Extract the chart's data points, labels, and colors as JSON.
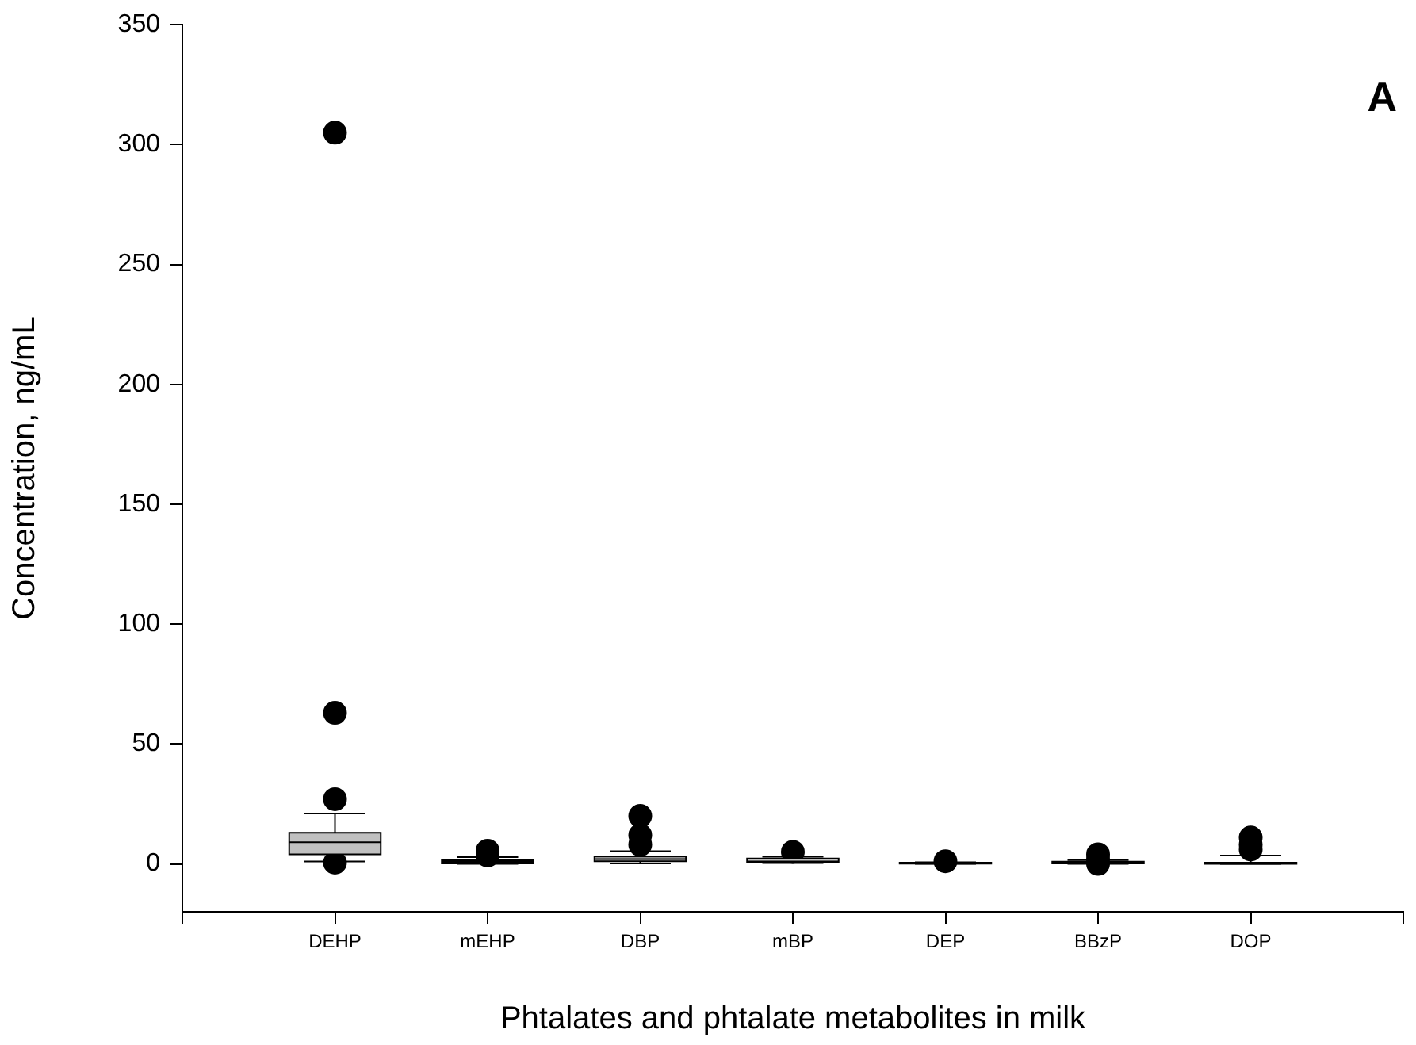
{
  "chart_data": {
    "type": "box",
    "xlabel": "Phtalates and phtalate metabolites in milk",
    "ylabel": "Concentration, ng/mL",
    "categories": [
      "DEHP",
      "mEHP",
      "DBP",
      "mBP",
      "DEP",
      "BBzP",
      "DOP"
    ],
    "color": "#c0c0c0",
    "boxes": [
      {
        "low": 1,
        "q1": 4,
        "median": 9,
        "q3": 13,
        "high": 21,
        "outliers": [
          0.5,
          27,
          63,
          305
        ]
      },
      {
        "low": 0,
        "q1": 0.2,
        "median": 0.8,
        "q3": 1.5,
        "high": 2.8,
        "outliers": [
          3.5,
          5.5
        ]
      },
      {
        "low": 0.2,
        "q1": 1.1,
        "median": 2,
        "q3": 3.1,
        "high": 5.3,
        "outliers": [
          8,
          12,
          20
        ]
      },
      {
        "low": 0.3,
        "q1": 0.7,
        "median": 1,
        "q3": 2.2,
        "high": 3,
        "outliers": [
          5
        ]
      },
      {
        "low": 0,
        "q1": 0.1,
        "median": 0.3,
        "q3": 0.5,
        "high": 0.7,
        "outliers": [
          1.1
        ]
      },
      {
        "low": 0,
        "q1": 0.2,
        "median": 0.5,
        "q3": 0.9,
        "high": 1.6,
        "outliers": [
          0,
          2,
          4
        ]
      },
      {
        "low": 0,
        "q1": 0,
        "median": 0.2,
        "q3": 0.5,
        "high": 3.5,
        "outliers": [
          6,
          8,
          11
        ]
      }
    ],
    "ylim": [
      -20,
      350
    ],
    "yticks": [
      0,
      50,
      100,
      150,
      200,
      250,
      300,
      350
    ],
    "annotations": [
      "A"
    ],
    "grid": false,
    "legend": false
  }
}
